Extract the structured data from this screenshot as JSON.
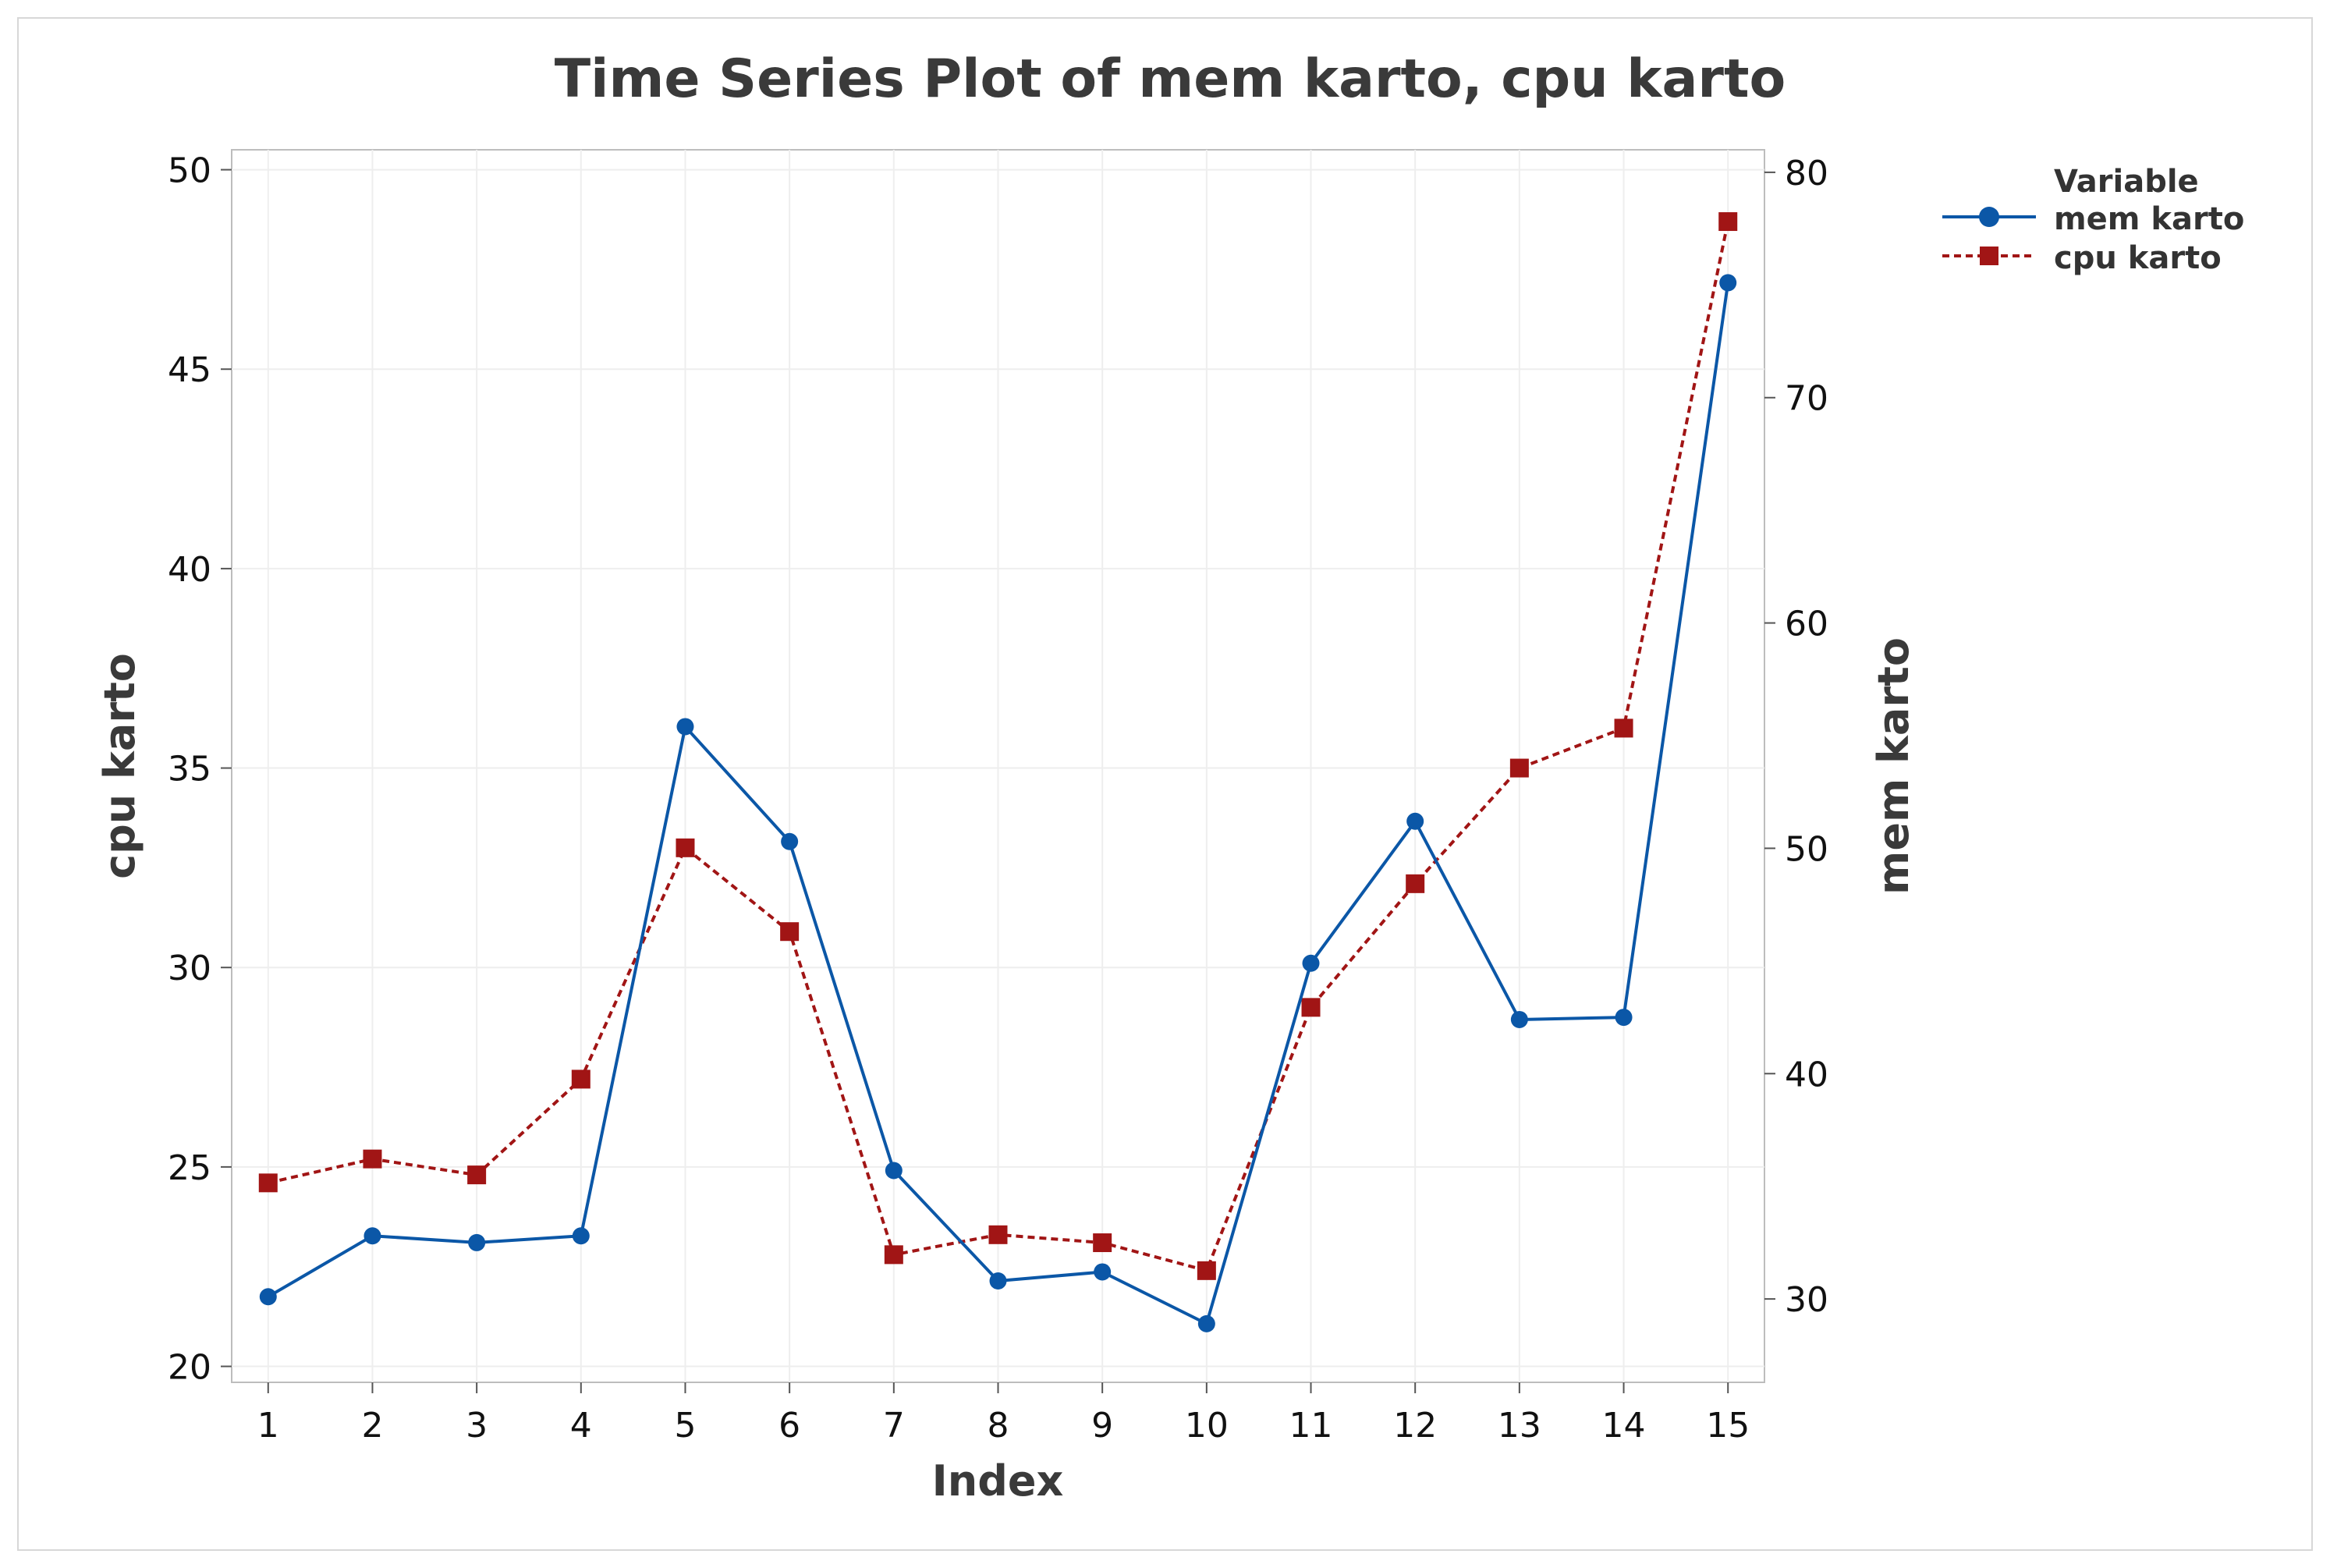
{
  "chart_data": {
    "type": "line",
    "title": "Time Series Plot of mem karto, cpu karto",
    "xlabel": "Index",
    "ylabel_left": "cpu karto",
    "ylabel_right": "mem karto",
    "x": [
      1,
      2,
      3,
      4,
      5,
      6,
      7,
      8,
      9,
      10,
      11,
      12,
      13,
      14,
      15
    ],
    "xlim": [
      0.65,
      15.35
    ],
    "ylim_left": [
      19.6,
      50.5
    ],
    "ylim_right": [
      26.3,
      81.0
    ],
    "yticks_left": [
      20,
      25,
      30,
      35,
      40,
      45,
      50
    ],
    "yticks_right": [
      30,
      40,
      50,
      60,
      70,
      80
    ],
    "grid": true,
    "legend": {
      "title": "Variable",
      "position": "top-right, outside plot"
    },
    "series": [
      {
        "name": "mem karto",
        "axis": "right",
        "color": "#0b57a7",
        "marker": "circle",
        "line": "solid",
        "values": [
          30.1,
          32.8,
          32.5,
          32.8,
          55.4,
          50.3,
          35.7,
          30.8,
          31.2,
          28.9,
          44.9,
          51.2,
          42.4,
          42.5,
          75.1
        ]
      },
      {
        "name": "cpu karto",
        "axis": "left",
        "color": "#a11515",
        "marker": "square",
        "line": "dashed",
        "values": [
          24.6,
          25.2,
          24.8,
          27.2,
          33.0,
          30.9,
          22.8,
          23.3,
          23.1,
          22.4,
          29.0,
          32.1,
          35.0,
          36.0,
          48.7
        ]
      }
    ]
  }
}
